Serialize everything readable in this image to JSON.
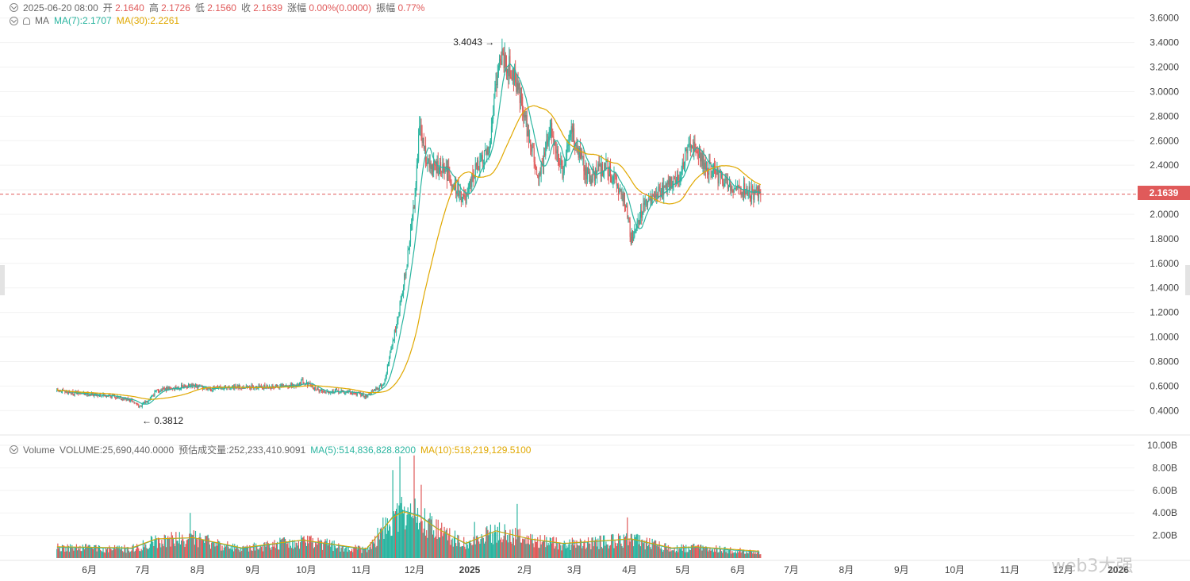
{
  "header": {
    "date": "2025-06-20 08:00",
    "open_label": "开",
    "open": "2.1640",
    "high_label": "高",
    "high": "2.1726",
    "low_label": "低",
    "low": "2.1560",
    "close_label": "收",
    "close": "2.1639",
    "change_label": "涨幅",
    "change": "0.00%(0.0000)",
    "amp_label": "振幅",
    "amp": "0.77%"
  },
  "ma_row": {
    "label": "MA",
    "ma7": "MA(7):2.1707",
    "ma30": "MA(30):2.2261"
  },
  "volume_row": {
    "label": "Volume",
    "volume": "VOLUME:25,690,440.0000",
    "est_label": "预估成交量:252,233,410.9091",
    "ma5": "MA(5):514,836,828.8200",
    "ma10": "MA(10):518,219,129.5100"
  },
  "price_tag": "2.1639",
  "watermark": "web3大强",
  "colors": {
    "up": "#2bb5a0",
    "down": "#e05a5a",
    "ma7": "#2bb5a0",
    "ma30": "#e0a800",
    "grid": "#f2f2f2"
  },
  "chart_data": {
    "type": "candlestick",
    "price_axis": {
      "ylim": [
        0.35,
        3.65
      ],
      "ticks": [
        "3.6000",
        "3.4000",
        "3.2000",
        "3.0000",
        "2.8000",
        "2.6000",
        "2.4000",
        "2.2000",
        "2.0000",
        "1.8000",
        "1.6000",
        "1.4000",
        "1.2000",
        "1.0000",
        "0.8000",
        "0.6000",
        "0.4000"
      ]
    },
    "volume_axis": {
      "ylim": [
        0,
        10
      ],
      "unit": "B",
      "ticks": [
        "10.00B",
        "8.00B",
        "6.00B",
        "4.00B",
        "2.00B"
      ]
    },
    "x_axis": {
      "labels": [
        "6月",
        "7月",
        "8月",
        "9月",
        "10月",
        "11月",
        "12月",
        "2025",
        "2月",
        "3月",
        "4月",
        "5月",
        "6月",
        "7月",
        "8月",
        "9月",
        "10月",
        "11月",
        "12月",
        "2026"
      ]
    },
    "annotations": {
      "max": "3.4043",
      "min": "0.3812"
    },
    "last_price": 2.1639,
    "price_anchors": [
      [
        "2024-05-20",
        0.56
      ],
      [
        "2024-06-01",
        0.54
      ],
      [
        "2024-06-20",
        0.52
      ],
      [
        "2024-07-01",
        0.48
      ],
      [
        "2024-07-06",
        0.43
      ],
      [
        "2024-07-15",
        0.56
      ],
      [
        "2024-08-01",
        0.6
      ],
      [
        "2024-08-15",
        0.58
      ],
      [
        "2024-09-01",
        0.59
      ],
      [
        "2024-10-01",
        0.6
      ],
      [
        "2024-10-05",
        0.64
      ],
      [
        "2024-10-15",
        0.56
      ],
      [
        "2024-11-01",
        0.55
      ],
      [
        "2024-11-10",
        0.52
      ],
      [
        "2024-11-20",
        0.62
      ],
      [
        "2024-11-27",
        1.1
      ],
      [
        "2024-12-03",
        1.6
      ],
      [
        "2024-12-07",
        2.1
      ],
      [
        "2024-12-10",
        2.7
      ],
      [
        "2024-12-15",
        2.4
      ],
      [
        "2024-12-25",
        2.35
      ],
      [
        "2025-01-05",
        2.1
      ],
      [
        "2025-01-10",
        2.35
      ],
      [
        "2025-01-18",
        2.5
      ],
      [
        "2025-01-22",
        3.1
      ],
      [
        "2025-01-25",
        3.3
      ],
      [
        "2025-02-01",
        3.15
      ],
      [
        "2025-02-05",
        2.95
      ],
      [
        "2025-02-10",
        2.6
      ],
      [
        "2025-02-15",
        2.3
      ],
      [
        "2025-02-22",
        2.7
      ],
      [
        "2025-03-01",
        2.3
      ],
      [
        "2025-03-05",
        2.7
      ],
      [
        "2025-03-15",
        2.3
      ],
      [
        "2025-03-25",
        2.4
      ],
      [
        "2025-04-05",
        2.1
      ],
      [
        "2025-04-08",
        1.8
      ],
      [
        "2025-04-15",
        2.05
      ],
      [
        "2025-04-25",
        2.2
      ],
      [
        "2025-05-05",
        2.3
      ],
      [
        "2025-05-12",
        2.6
      ],
      [
        "2025-05-20",
        2.4
      ],
      [
        "2025-06-01",
        2.25
      ],
      [
        "2025-06-10",
        2.2
      ],
      [
        "2025-06-20",
        2.16
      ]
    ],
    "volume_anchors": [
      [
        "2024-05-20",
        0.9
      ],
      [
        "2024-07-01",
        0.8
      ],
      [
        "2024-07-15",
        1.6
      ],
      [
        "2024-08-05",
        1.7
      ],
      [
        "2024-09-01",
        0.8
      ],
      [
        "2024-10-05",
        1.5
      ],
      [
        "2024-11-10",
        0.7
      ],
      [
        "2024-11-25",
        3.5
      ],
      [
        "2024-12-01",
        4.0
      ],
      [
        "2024-12-10",
        3.6
      ],
      [
        "2024-12-20",
        2.5
      ],
      [
        "2025-01-05",
        1.2
      ],
      [
        "2025-01-22",
        2.3
      ],
      [
        "2025-02-10",
        1.6
      ],
      [
        "2025-03-01",
        1.2
      ],
      [
        "2025-04-08",
        1.6
      ],
      [
        "2025-05-01",
        0.8
      ],
      [
        "2025-05-15",
        0.9
      ],
      [
        "2025-06-20",
        0.5
      ]
    ],
    "volume_spikes": [
      [
        "2024-08-03",
        4.0
      ],
      [
        "2024-11-25",
        7.8
      ],
      [
        "2024-11-29",
        9.0
      ],
      [
        "2024-12-07",
        9.1
      ],
      [
        "2024-12-11",
        6.5
      ],
      [
        "2025-01-10",
        3.2
      ],
      [
        "2025-02-03",
        4.8
      ],
      [
        "2025-04-06",
        3.6
      ]
    ]
  }
}
